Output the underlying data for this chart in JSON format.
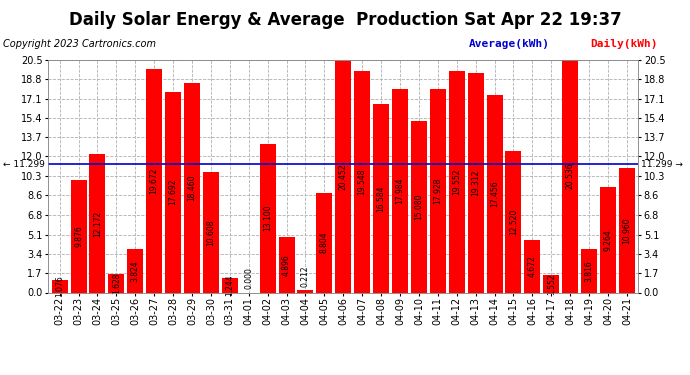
{
  "title": "Daily Solar Energy & Average  Production Sat Apr 22 19:37",
  "copyright": "Copyright 2023 Cartronics.com",
  "categories": [
    "03-22",
    "03-23",
    "03-24",
    "03-25",
    "03-26",
    "03-27",
    "03-28",
    "03-29",
    "03-30",
    "03-31",
    "04-01",
    "04-02",
    "04-03",
    "04-04",
    "04-05",
    "04-06",
    "04-07",
    "04-08",
    "04-09",
    "04-10",
    "04-11",
    "04-12",
    "04-13",
    "04-14",
    "04-15",
    "04-16",
    "04-17",
    "04-18",
    "04-19",
    "04-20",
    "04-21"
  ],
  "values": [
    1.076,
    9.876,
    12.172,
    1.628,
    3.824,
    19.672,
    17.692,
    18.46,
    10.608,
    1.244,
    0.0,
    13.1,
    4.896,
    0.212,
    8.804,
    20.452,
    19.548,
    16.584,
    17.984,
    15.08,
    17.928,
    19.552,
    19.312,
    17.456,
    12.52,
    4.672,
    1.552,
    20.536,
    3.816,
    9.264,
    10.96
  ],
  "average": 11.299,
  "bar_color": "#ff0000",
  "average_line_color": "#0000cc",
  "average_label": "Average(kWh)",
  "daily_label": "Daily(kWh)",
  "yticks": [
    0.0,
    1.7,
    3.4,
    5.1,
    6.8,
    8.6,
    10.3,
    12.0,
    13.7,
    15.4,
    17.1,
    18.8,
    20.5
  ],
  "ylim": [
    0,
    20.5
  ],
  "background_color": "#ffffff",
  "grid_color": "#b0b0b0",
  "title_fontsize": 12,
  "tick_fontsize": 7,
  "bar_value_fontsize": 5.5,
  "copyright_fontsize": 7,
  "legend_fontsize": 8
}
